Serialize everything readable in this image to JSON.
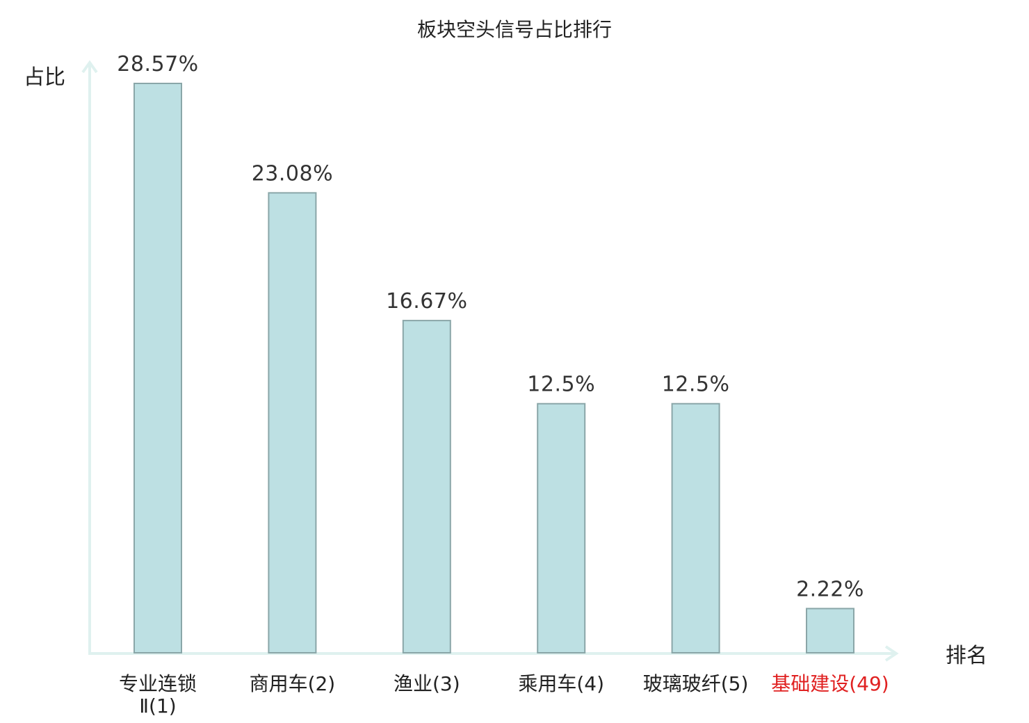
{
  "chart_data": {
    "type": "bar",
    "title": "板块空头信号占比排行",
    "xlabel": "排名",
    "ylabel": "占比",
    "ylim": [
      0,
      30
    ],
    "grid": false,
    "categories": [
      {
        "lines": [
          "专业连锁",
          "Ⅱ(1)"
        ],
        "highlight": false
      },
      {
        "lines": [
          "商用车(2)"
        ],
        "highlight": false
      },
      {
        "lines": [
          "渔业(3)"
        ],
        "highlight": false
      },
      {
        "lines": [
          "乘用车(4)"
        ],
        "highlight": false
      },
      {
        "lines": [
          "玻璃玻纤(5)"
        ],
        "highlight": false
      },
      {
        "lines": [
          "基础建设(49)"
        ],
        "highlight": true
      }
    ],
    "values": [
      28.57,
      23.08,
      16.67,
      12.5,
      12.5,
      2.22
    ],
    "value_labels": [
      "28.57%",
      "23.08%",
      "16.67%",
      "12.5%",
      "12.5%",
      "2.22%"
    ],
    "colors": {
      "bar_fill": "#bde0e3",
      "bar_stroke": "#8aa6a8",
      "axis": "#dff1ef",
      "label_text": "#222222",
      "highlight_text": "#e02020"
    }
  }
}
